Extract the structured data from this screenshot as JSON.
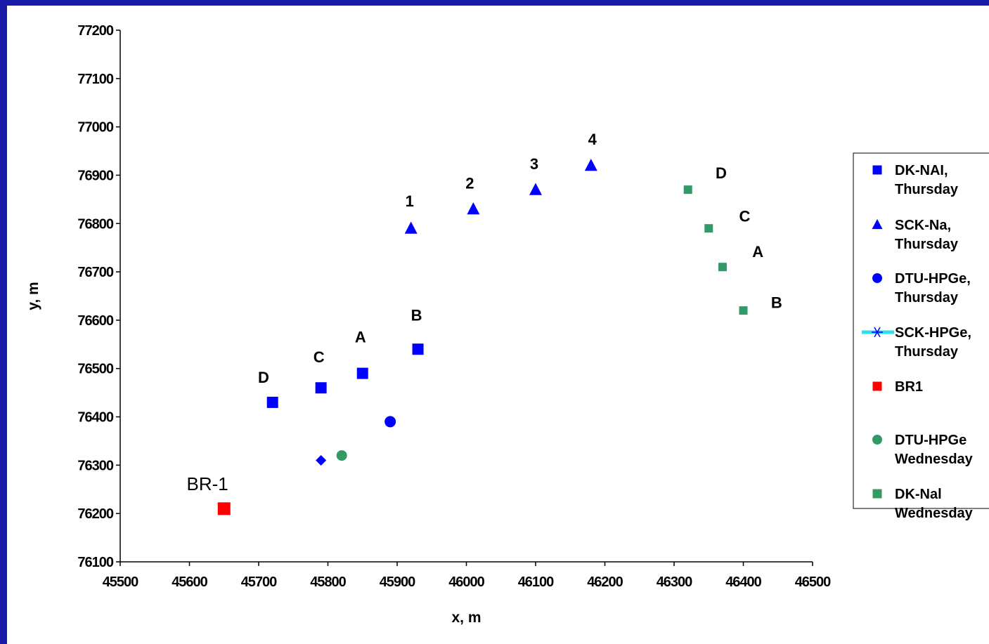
{
  "chart_data": {
    "type": "scatter",
    "xlabel": "x, m",
    "ylabel": "y, m",
    "xlim": [
      45500,
      46500
    ],
    "ylim": [
      76100,
      77200
    ],
    "xticks": [
      45500,
      45600,
      45700,
      45800,
      45900,
      46000,
      46100,
      46200,
      46300,
      46400,
      46500
    ],
    "yticks": [
      76100,
      76200,
      76300,
      76400,
      76500,
      76600,
      76700,
      76800,
      76900,
      77000,
      77100,
      77200
    ],
    "grid": false,
    "legend_position": "right",
    "series": [
      {
        "name": "DK-NAI, Thursday",
        "legend_lines": [
          "DK-NAI,",
          "Thursday"
        ],
        "marker": "square",
        "color": "#0000ff",
        "points": [
          [
            45720,
            76430
          ],
          [
            45790,
            76460
          ],
          [
            45850,
            76490
          ],
          [
            45930,
            76540
          ]
        ]
      },
      {
        "name": "SCK-Na, Thursday",
        "legend_lines": [
          "SCK-Na,",
          "Thursday"
        ],
        "marker": "triangle",
        "color": "#0000ff",
        "points": [
          [
            45920,
            76790
          ],
          [
            46010,
            76830
          ],
          [
            46100,
            76870
          ],
          [
            46180,
            76920
          ]
        ]
      },
      {
        "name": "DTU-HPGe, Thursday",
        "legend_lines": [
          "DTU-HPGe,",
          "Thursday"
        ],
        "marker": "circle",
        "color": "#0000ff",
        "points": [
          [
            45890,
            76390
          ]
        ]
      },
      {
        "name": "SCK-HPGe, Thursday",
        "legend_lines": [
          "SCK-HPGe,",
          "Thursday"
        ],
        "marker": "diamond",
        "legend_marker": "star-line",
        "color": "#0000ff",
        "line_color": "#33ddee",
        "points": [
          [
            45790,
            76310
          ]
        ]
      },
      {
        "name": "BR1",
        "legend_lines": [
          "BR1"
        ],
        "marker": "square",
        "color": "#ff0000",
        "points": [
          [
            45650,
            76210
          ]
        ]
      },
      {
        "name": "DTU-HPGe Wednesday",
        "legend_lines": [
          "DTU-HPGe",
          "Wednesday"
        ],
        "marker": "circle",
        "color": "#339966",
        "points": [
          [
            45820,
            76320
          ]
        ]
      },
      {
        "name": "DK-Nal Wednesday",
        "legend_lines": [
          "DK-Nal",
          "Wednesday"
        ],
        "marker": "square",
        "color": "#339966",
        "points": [
          [
            46320,
            76870
          ],
          [
            46350,
            76790
          ],
          [
            46370,
            76710
          ],
          [
            46400,
            76620
          ]
        ]
      }
    ],
    "annotations": [
      {
        "text": "D",
        "x": 45707,
        "y": 76482,
        "style": "bold"
      },
      {
        "text": "C",
        "x": 45787,
        "y": 76524,
        "style": "bold"
      },
      {
        "text": "A",
        "x": 45847,
        "y": 76566,
        "style": "bold"
      },
      {
        "text": "B",
        "x": 45928,
        "y": 76611,
        "style": "bold"
      },
      {
        "text": "1",
        "x": 45918,
        "y": 76847,
        "style": "bold"
      },
      {
        "text": "2",
        "x": 46005,
        "y": 76884,
        "style": "bold"
      },
      {
        "text": "3",
        "x": 46098,
        "y": 76924,
        "style": "bold"
      },
      {
        "text": "4",
        "x": 46182,
        "y": 76975,
        "style": "bold"
      },
      {
        "text": "D",
        "x": 46368,
        "y": 76905,
        "style": "bold"
      },
      {
        "text": "C",
        "x": 46402,
        "y": 76816,
        "style": "bold"
      },
      {
        "text": "A",
        "x": 46421,
        "y": 76742,
        "style": "bold"
      },
      {
        "text": "B",
        "x": 46448,
        "y": 76637,
        "style": "bold"
      },
      {
        "text": "BR-1",
        "x": 45626,
        "y": 76260,
        "style": "plain"
      }
    ]
  }
}
